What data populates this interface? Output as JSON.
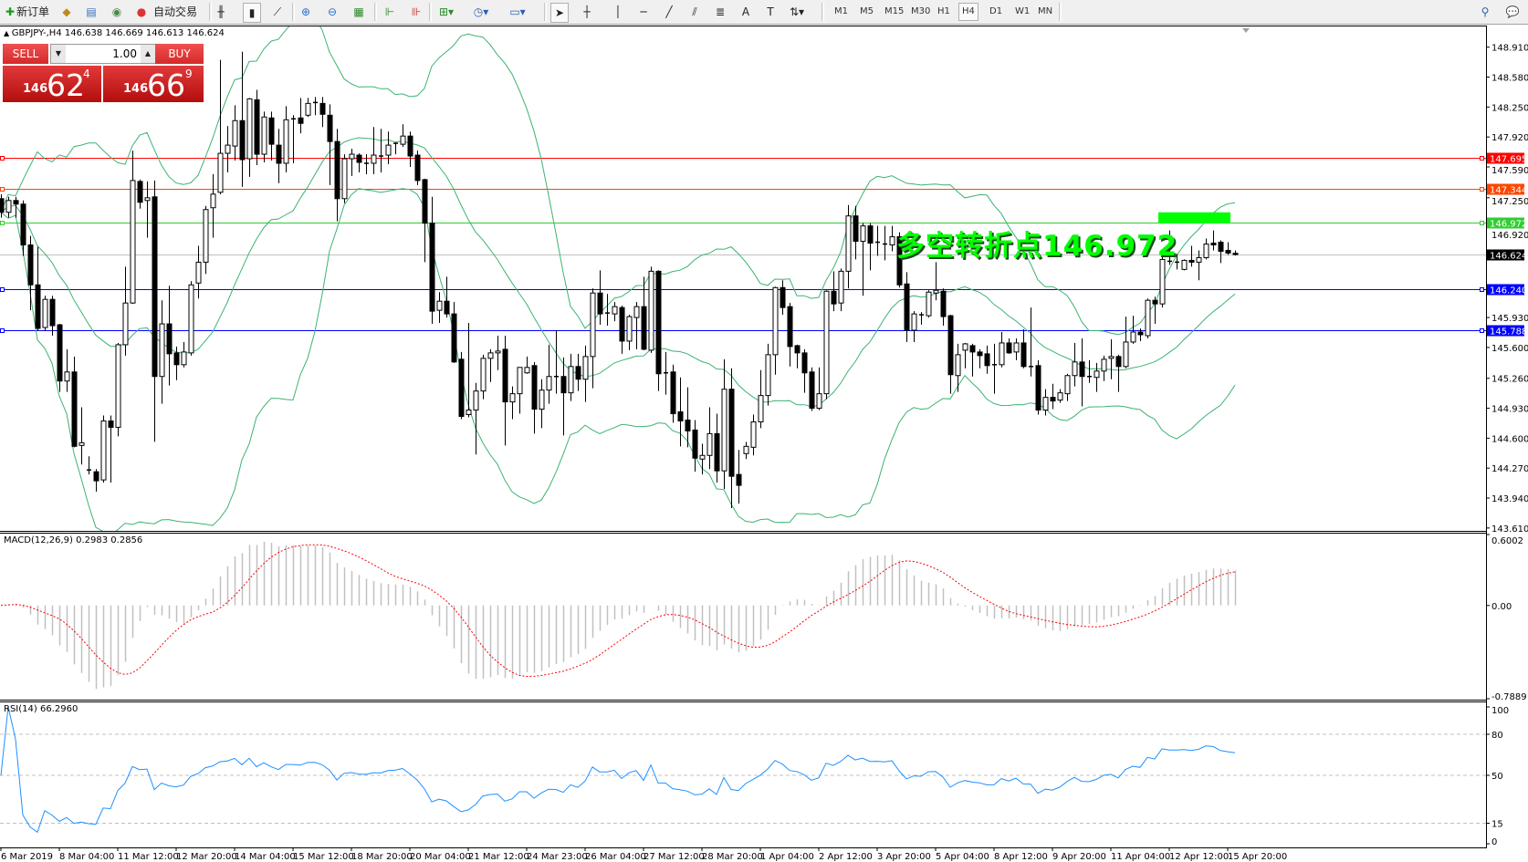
{
  "toolbar": {
    "new_order": "新订单",
    "auto_trading": "自动交易",
    "timeframes": [
      "M1",
      "M5",
      "M15",
      "M30",
      "H1",
      "H4",
      "D1",
      "W1",
      "MN"
    ],
    "active_timeframe": "H4"
  },
  "chart_header": "GBPJPY-,H4  146.638 146.669 146.613 146.624",
  "trade_panel": {
    "sell_label": "SELL",
    "buy_label": "BUY",
    "lot": "1.00",
    "sell_price": {
      "prefix": "146",
      "big": "62",
      "small": "4"
    },
    "buy_price": {
      "prefix": "146",
      "big": "66",
      "small": "9"
    }
  },
  "annotation": {
    "text": "多空转折点146.972",
    "color": "#00ff00"
  },
  "price_axis": [
    "148.910",
    "148.580",
    "148.250",
    "147.920",
    "147.590",
    "147.250",
    "146.920",
    "145.930",
    "145.600",
    "145.260",
    "144.930",
    "144.600",
    "144.270",
    "143.940",
    "143.610"
  ],
  "levels": [
    {
      "price": "147.695",
      "color": "#ff0000"
    },
    {
      "price": "147.344",
      "color": "#ff4500"
    },
    {
      "price": "146.972",
      "color": "#32cd32"
    },
    {
      "price": "146.624",
      "color": "#c0c0c0",
      "label_bg": "#000000"
    },
    {
      "price": "146.240",
      "color": "#0000ff"
    },
    {
      "price": "145.788",
      "color": "#0000ff"
    }
  ],
  "macd": {
    "label": "MACD(12,26,9) 0.2983 0.2856",
    "scale": [
      "0.6002",
      "0.00",
      "-0.7889"
    ],
    "max": 0.6002,
    "min": -0.7889,
    "hist_color": "#c0c0c0",
    "signal_color": "#ff0000"
  },
  "rsi": {
    "label": "RSI(14) 66.2960",
    "scale": [
      "100",
      "80",
      "50",
      "15",
      "0"
    ],
    "levels": [
      80,
      50,
      15
    ],
    "color": "#1e90ff"
  },
  "time_axis": [
    "6 Mar 2019",
    "8 Mar 04:00",
    "11 Mar 12:00",
    "12 Mar 20:00",
    "14 Mar 04:00",
    "15 Mar 12:00",
    "18 Mar 20:00",
    "20 Mar 04:00",
    "21 Mar 12:00",
    "24 Mar 23:00",
    "26 Mar 04:00",
    "27 Mar 12:00",
    "28 Mar 20:00",
    "1 Apr 04:00",
    "2 Apr 12:00",
    "3 Apr 20:00",
    "5 Apr 04:00",
    "8 Apr 12:00",
    "9 Apr 20:00",
    "11 Apr 04:00",
    "12 Apr 12:00",
    "15 Apr 20:00"
  ],
  "chart_data": {
    "type": "candlestick",
    "symbol": "GBPJPY-",
    "timeframe": "H4",
    "ylim": [
      143.61,
      149.2
    ],
    "bollinger_color": "#3cb371",
    "ohlc": [
      [
        147.24,
        147.29,
        147.03,
        147.09
      ],
      [
        147.09,
        147.26,
        147.03,
        147.22
      ],
      [
        147.22,
        147.26,
        147.03,
        147.18
      ],
      [
        147.18,
        147.22,
        146.61,
        146.73
      ],
      [
        146.73,
        146.83,
        146.01,
        146.29
      ],
      [
        146.29,
        146.71,
        145.78,
        145.81
      ],
      [
        145.82,
        146.17,
        145.78,
        146.13
      ],
      [
        146.13,
        146.17,
        145.73,
        145.84
      ],
      [
        145.85,
        145.86,
        145.11,
        145.23
      ],
      [
        145.23,
        145.58,
        145.11,
        145.33
      ],
      [
        145.33,
        145.5,
        144.5,
        144.51
      ],
      [
        144.52,
        144.94,
        144.31,
        144.55
      ],
      [
        144.25,
        144.4,
        144.2,
        144.25
      ],
      [
        144.23,
        144.26,
        144.01,
        144.13
      ],
      [
        144.14,
        144.85,
        144.11,
        144.79
      ],
      [
        144.79,
        144.85,
        144.11,
        144.72
      ],
      [
        144.72,
        145.65,
        144.62,
        145.63
      ],
      [
        145.63,
        146.49,
        145.51,
        146.09
      ],
      [
        146.09,
        147.77,
        146.08,
        147.44
      ],
      [
        147.43,
        147.45,
        147.13,
        147.2
      ],
      [
        147.22,
        147.43,
        146.81,
        147.25
      ],
      [
        147.26,
        147.44,
        144.56,
        145.28
      ],
      [
        145.28,
        146.12,
        144.98,
        145.86
      ],
      [
        145.86,
        146.28,
        145.18,
        145.53
      ],
      [
        145.54,
        145.61,
        145.24,
        145.41
      ],
      [
        145.41,
        145.66,
        145.38,
        145.55
      ],
      [
        145.54,
        146.33,
        145.51,
        146.29
      ],
      [
        146.31,
        146.72,
        146.14,
        146.54
      ],
      [
        146.54,
        147.16,
        146.41,
        147.12
      ],
      [
        147.14,
        147.51,
        146.81,
        147.29
      ],
      [
        147.31,
        148.77,
        147.29,
        147.74
      ],
      [
        147.74,
        148.04,
        147.53,
        147.83
      ],
      [
        147.82,
        148.27,
        147.66,
        148.1
      ],
      [
        148.1,
        148.86,
        147.37,
        147.67
      ],
      [
        147.68,
        148.35,
        147.48,
        148.34
      ],
      [
        148.33,
        148.44,
        147.61,
        147.73
      ],
      [
        147.73,
        148.2,
        147.64,
        148.14
      ],
      [
        148.13,
        148.2,
        147.66,
        147.84
      ],
      [
        147.83,
        148.01,
        147.41,
        147.63
      ],
      [
        147.63,
        148.26,
        147.53,
        148.11
      ],
      [
        148.12,
        148.16,
        147.63,
        148.11
      ],
      [
        148.13,
        148.35,
        147.96,
        148.07
      ],
      [
        148.16,
        148.35,
        148.14,
        148.29
      ],
      [
        148.29,
        148.36,
        148.16,
        148.3
      ],
      [
        148.29,
        148.36,
        148.03,
        148.17
      ],
      [
        148.16,
        148.28,
        147.39,
        147.87
      ],
      [
        147.87,
        148.01,
        146.99,
        147.24
      ],
      [
        147.24,
        147.73,
        147.19,
        147.68
      ],
      [
        147.68,
        147.79,
        147.49,
        147.73
      ],
      [
        147.72,
        147.74,
        147.53,
        147.64
      ],
      [
        147.63,
        147.73,
        147.51,
        147.62
      ],
      [
        147.63,
        148.03,
        147.51,
        147.72
      ],
      [
        147.71,
        148.01,
        147.53,
        147.7
      ],
      [
        147.72,
        147.98,
        147.62,
        147.83
      ],
      [
        147.84,
        147.86,
        147.73,
        147.85
      ],
      [
        147.84,
        148.06,
        147.81,
        147.93
      ],
      [
        147.93,
        147.98,
        147.59,
        147.71
      ],
      [
        147.72,
        147.77,
        147.39,
        147.44
      ],
      [
        147.45,
        147.46,
        146.54,
        146.97
      ],
      [
        146.97,
        147.26,
        145.86,
        146.0
      ],
      [
        146.01,
        146.21,
        145.87,
        146.11
      ],
      [
        146.11,
        146.38,
        145.93,
        145.97
      ],
      [
        145.97,
        146.1,
        145.43,
        145.44
      ],
      [
        145.47,
        145.55,
        144.81,
        144.84
      ],
      [
        144.86,
        145.87,
        144.83,
        144.91
      ],
      [
        144.91,
        145.21,
        144.42,
        145.12
      ],
      [
        145.12,
        145.52,
        145.03,
        145.48
      ],
      [
        145.48,
        145.58,
        145.22,
        145.54
      ],
      [
        145.54,
        145.73,
        145.35,
        145.56
      ],
      [
        145.58,
        145.73,
        144.52,
        145.0
      ],
      [
        145.0,
        145.17,
        144.81,
        145.09
      ],
      [
        145.09,
        145.38,
        144.87,
        145.38
      ],
      [
        145.32,
        145.5,
        145.31,
        145.38
      ],
      [
        145.4,
        145.44,
        144.65,
        144.92
      ],
      [
        144.92,
        145.25,
        144.71,
        145.13
      ],
      [
        145.13,
        145.63,
        144.98,
        145.28
      ],
      [
        145.28,
        145.79,
        145.09,
        145.27
      ],
      [
        145.28,
        145.49,
        144.63,
        145.1
      ],
      [
        145.1,
        145.53,
        145.01,
        145.39
      ],
      [
        145.39,
        145.53,
        145.12,
        145.25
      ],
      [
        145.25,
        145.62,
        145.0,
        145.5
      ],
      [
        145.5,
        146.25,
        145.15,
        146.2
      ],
      [
        146.2,
        146.45,
        145.85,
        145.97
      ],
      [
        145.98,
        146.19,
        145.84,
        145.97
      ],
      [
        145.97,
        146.1,
        145.89,
        146.05
      ],
      [
        146.04,
        146.06,
        145.53,
        145.67
      ],
      [
        145.67,
        145.96,
        145.57,
        145.94
      ],
      [
        145.93,
        146.1,
        145.58,
        146.05
      ],
      [
        146.05,
        146.38,
        145.57,
        145.58
      ],
      [
        145.57,
        146.49,
        145.54,
        146.44
      ],
      [
        146.44,
        146.45,
        145.12,
        145.31
      ],
      [
        145.32,
        145.55,
        145.08,
        145.31
      ],
      [
        145.33,
        145.41,
        144.77,
        144.87
      ],
      [
        144.89,
        145.27,
        144.51,
        144.79
      ],
      [
        144.8,
        145.16,
        144.5,
        144.68
      ],
      [
        144.69,
        144.8,
        144.23,
        144.38
      ],
      [
        144.37,
        144.54,
        144.2,
        144.41
      ],
      [
        144.41,
        144.94,
        144.26,
        144.65
      ],
      [
        144.65,
        144.87,
        144.11,
        144.24
      ],
      [
        144.24,
        145.47,
        144.04,
        145.14
      ],
      [
        145.14,
        145.37,
        143.83,
        144.18
      ],
      [
        144.2,
        144.47,
        143.88,
        144.08
      ],
      [
        144.43,
        144.56,
        144.37,
        144.51
      ],
      [
        144.5,
        144.86,
        144.41,
        144.78
      ],
      [
        144.78,
        145.35,
        144.71,
        145.07
      ],
      [
        145.07,
        145.64,
        144.96,
        145.52
      ],
      [
        145.52,
        146.27,
        145.3,
        146.26
      ],
      [
        146.26,
        146.34,
        145.96,
        146.04
      ],
      [
        146.05,
        146.09,
        145.39,
        145.61
      ],
      [
        145.62,
        145.63,
        145.37,
        145.54
      ],
      [
        145.54,
        145.58,
        145.1,
        145.32
      ],
      [
        145.33,
        145.38,
        144.9,
        144.93
      ],
      [
        144.93,
        145.38,
        144.91,
        145.09
      ],
      [
        145.09,
        146.23,
        145.03,
        146.22
      ],
      [
        146.22,
        146.44,
        146.0,
        146.08
      ],
      [
        146.09,
        146.47,
        146.0,
        146.44
      ],
      [
        146.44,
        147.17,
        146.25,
        147.05
      ],
      [
        147.05,
        147.16,
        146.57,
        146.77
      ],
      [
        146.77,
        146.97,
        146.17,
        146.94
      ],
      [
        146.94,
        146.97,
        146.45,
        146.75
      ],
      [
        146.75,
        146.94,
        146.61,
        146.76
      ],
      [
        146.74,
        146.94,
        146.56,
        146.73
      ],
      [
        146.73,
        146.94,
        146.66,
        146.82
      ],
      [
        146.82,
        146.87,
        146.26,
        146.29
      ],
      [
        146.3,
        146.43,
        145.66,
        145.79
      ],
      [
        145.79,
        146.0,
        145.66,
        145.97
      ],
      [
        145.96,
        145.99,
        145.85,
        145.95
      ],
      [
        145.95,
        146.23,
        145.93,
        146.21
      ],
      [
        146.2,
        146.54,
        146.12,
        146.23
      ],
      [
        146.22,
        146.25,
        145.84,
        145.94
      ],
      [
        145.95,
        145.96,
        145.09,
        145.3
      ],
      [
        145.29,
        145.64,
        145.11,
        145.52
      ],
      [
        145.57,
        145.65,
        145.37,
        145.64
      ],
      [
        145.62,
        145.64,
        145.28,
        145.55
      ],
      [
        145.55,
        145.58,
        145.37,
        145.51
      ],
      [
        145.53,
        145.62,
        145.31,
        145.4
      ],
      [
        145.41,
        145.64,
        145.09,
        145.4
      ],
      [
        145.41,
        145.77,
        145.38,
        145.65
      ],
      [
        145.65,
        145.7,
        145.53,
        145.54
      ],
      [
        145.55,
        145.7,
        145.46,
        145.65
      ],
      [
        145.65,
        145.8,
        145.37,
        145.39
      ],
      [
        145.39,
        146.04,
        145.28,
        145.38
      ],
      [
        145.4,
        145.46,
        144.86,
        144.91
      ],
      [
        144.91,
        145.14,
        144.85,
        145.05
      ],
      [
        145.05,
        145.2,
        144.92,
        145.01
      ],
      [
        145.02,
        145.14,
        144.99,
        145.1
      ],
      [
        145.09,
        145.31,
        145.01,
        145.29
      ],
      [
        145.29,
        145.65,
        145.17,
        145.44
      ],
      [
        145.44,
        145.7,
        144.95,
        145.28
      ],
      [
        145.28,
        145.46,
        145.21,
        145.27
      ],
      [
        145.27,
        145.43,
        145.11,
        145.34
      ],
      [
        145.34,
        145.51,
        145.23,
        145.47
      ],
      [
        145.48,
        145.69,
        145.25,
        145.5
      ],
      [
        145.5,
        145.52,
        145.11,
        145.39
      ],
      [
        145.39,
        145.94,
        145.37,
        145.66
      ],
      [
        145.66,
        145.95,
        145.64,
        145.77
      ],
      [
        145.77,
        145.81,
        145.67,
        145.74
      ],
      [
        145.73,
        146.14,
        145.7,
        146.12
      ],
      [
        146.12,
        146.16,
        145.86,
        146.08
      ],
      [
        146.08,
        146.67,
        146.04,
        146.57
      ],
      [
        146.55,
        146.89,
        146.51,
        146.54
      ],
      [
        146.53,
        146.63,
        146.46,
        146.54
      ],
      [
        146.46,
        146.57,
        146.45,
        146.56
      ],
      [
        146.56,
        146.72,
        146.49,
        146.54
      ],
      [
        146.54,
        146.67,
        146.34,
        146.59
      ],
      [
        146.59,
        146.8,
        146.57,
        146.74
      ],
      [
        146.75,
        146.89,
        146.67,
        146.73
      ],
      [
        146.76,
        146.78,
        146.53,
        146.66
      ],
      [
        146.67,
        146.76,
        146.62,
        146.64
      ],
      [
        146.638,
        146.669,
        146.613,
        146.624
      ]
    ],
    "marker_box": {
      "price_top": 147.09,
      "price_bottom": 146.97,
      "color": "#00ff00"
    }
  }
}
